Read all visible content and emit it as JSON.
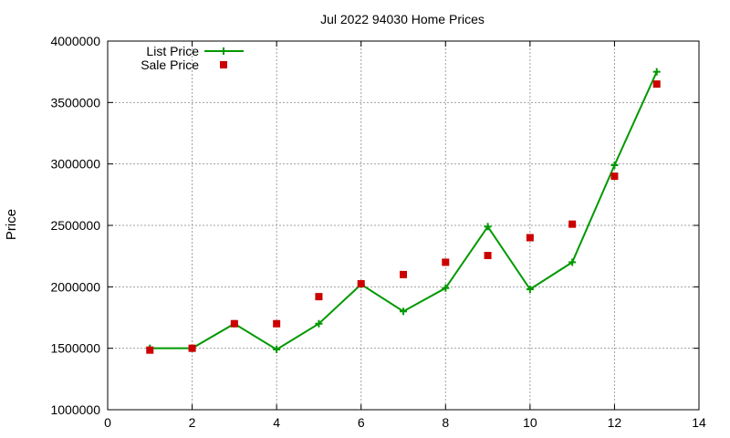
{
  "chart_data": {
    "type": "line",
    "title": "Jul 2022 94030 Home Prices",
    "xlabel": "",
    "ylabel": "Price",
    "xlim": [
      0,
      14
    ],
    "ylim": [
      1000000,
      4000000
    ],
    "xticks": [
      "0",
      "2",
      "4",
      "6",
      "8",
      "10",
      "12",
      "14"
    ],
    "yticks": [
      "1000000",
      "1500000",
      "2000000",
      "2500000",
      "3000000",
      "3500000",
      "4000000"
    ],
    "grid": true,
    "legend_position": "top-left",
    "series": [
      {
        "name": "List Price",
        "style": "line-with-plus-markers",
        "color": "#009900",
        "x": [
          1,
          2,
          3,
          4,
          5,
          6,
          7,
          8,
          9,
          10,
          11,
          12,
          13
        ],
        "y": [
          1500000,
          1500000,
          1700000,
          1490000,
          1700000,
          2020000,
          1800000,
          1990000,
          2490000,
          1980000,
          2200000,
          2990000,
          3750000
        ]
      },
      {
        "name": "Sale Price",
        "style": "square-points",
        "color": "#cc0000",
        "x": [
          1,
          2,
          3,
          4,
          5,
          6,
          7,
          8,
          9,
          10,
          11,
          12,
          13
        ],
        "y": [
          1485000,
          1500000,
          1700000,
          1700000,
          1920000,
          2025000,
          2100000,
          2200000,
          2255000,
          2400000,
          2510000,
          2900000,
          3650000
        ]
      }
    ]
  }
}
